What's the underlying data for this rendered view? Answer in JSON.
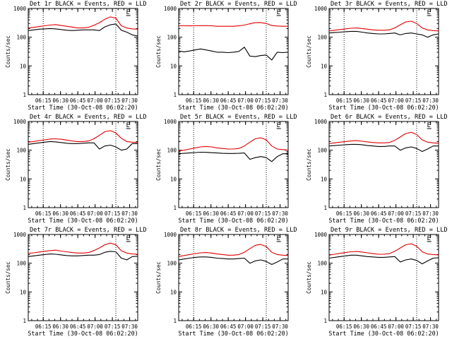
{
  "chart_data": {
    "type": "line",
    "y_scale": "log",
    "ylim": [
      1,
      1000
    ],
    "xlim_minutes": [
      0,
      95
    ],
    "x_ticks": [
      "06:15",
      "06:30",
      "06:45",
      "07:00",
      "07:15",
      "07:30"
    ],
    "x_tick_minutes": [
      13,
      28,
      43,
      58,
      73,
      88
    ],
    "y_ticks": [
      1,
      10,
      100,
      1000
    ],
    "y_tick_labels": [
      "1",
      "10",
      "100",
      "1000"
    ],
    "ylabel": "Counts/sec",
    "xlabel": "Start Time (30-Oct-08 06:02:20)",
    "marker_label": "E",
    "marker_minute": 85,
    "vline_minutes": [
      13,
      76
    ],
    "series_names": [
      "Events",
      "LLD"
    ],
    "colors": {
      "events": "#000000",
      "lld": "#e00000"
    },
    "panels": [
      {
        "title": "Det 1r BLACK = Events, RED = LLD",
        "events": [
          170,
          180,
          190,
          195,
          200,
          195,
          185,
          175,
          170,
          175,
          180,
          180,
          180,
          170,
          230,
          270,
          290,
          175,
          150,
          120,
          110
        ],
        "lld": [
          210,
          220,
          235,
          250,
          265,
          275,
          255,
          240,
          225,
          210,
          210,
          220,
          260,
          320,
          420,
          510,
          460,
          250,
          210,
          195,
          190
        ]
      },
      {
        "title": "Det 2r BLACK = Events, RED = LLD",
        "events": [
          33,
          31,
          33,
          36,
          39,
          36,
          33,
          30,
          30,
          29,
          30,
          32,
          45,
          22,
          21,
          23,
          24,
          16,
          30,
          29,
          30
        ],
        "lld": [
          250,
          250,
          248,
          250,
          252,
          252,
          250,
          240,
          240,
          240,
          240,
          248,
          265,
          295,
          320,
          325,
          300,
          255,
          245,
          240,
          240
        ],
        "dips": [
          [
            58,
            22
          ],
          [
            78,
            16
          ]
        ]
      },
      {
        "title": "Det 3r BLACK = Events, RED = LLD",
        "events": [
          140,
          145,
          150,
          155,
          160,
          160,
          150,
          140,
          135,
          130,
          130,
          135,
          140,
          120,
          135,
          140,
          130,
          120,
          100,
          120,
          130
        ],
        "lld": [
          165,
          175,
          185,
          195,
          205,
          210,
          200,
          190,
          180,
          175,
          175,
          180,
          210,
          270,
          340,
          360,
          300,
          210,
          180,
          170,
          165
        ]
      },
      {
        "title": "Det 4r BLACK = Events, RED = LLD",
        "events": [
          160,
          170,
          180,
          190,
          200,
          195,
          185,
          175,
          170,
          170,
          175,
          180,
          180,
          110,
          140,
          150,
          130,
          100,
          110,
          170,
          170
        ],
        "lld": [
          190,
          200,
          215,
          230,
          245,
          250,
          240,
          225,
          210,
          200,
          200,
          210,
          250,
          330,
          440,
          480,
          400,
          260,
          200,
          190,
          185
        ]
      },
      {
        "title": "Det 5r BLACK = Events, RED = LLD",
        "events": [
          75,
          78,
          80,
          83,
          85,
          84,
          82,
          80,
          78,
          77,
          77,
          78,
          80,
          48,
          55,
          60,
          55,
          40,
          60,
          75,
          75
        ],
        "lld": [
          95,
          100,
          110,
          120,
          130,
          135,
          130,
          120,
          115,
          110,
          110,
          115,
          140,
          190,
          250,
          270,
          230,
          140,
          110,
          105,
          100
        ]
      },
      {
        "title": "Det 6r BLACK = Events, RED = LLD",
        "events": [
          140,
          145,
          150,
          155,
          160,
          160,
          155,
          145,
          140,
          135,
          135,
          140,
          140,
          100,
          120,
          130,
          115,
          90,
          110,
          140,
          140
        ],
        "lld": [
          170,
          180,
          190,
          200,
          210,
          215,
          205,
          195,
          185,
          180,
          180,
          185,
          220,
          290,
          380,
          420,
          350,
          230,
          190,
          180,
          175
        ]
      },
      {
        "title": "Det 7r BLACK = Events, RED = LLD",
        "events": [
          170,
          180,
          190,
          200,
          210,
          205,
          195,
          185,
          180,
          180,
          185,
          190,
          190,
          200,
          240,
          260,
          250,
          150,
          130,
          170,
          175
        ],
        "lld": [
          220,
          230,
          245,
          260,
          275,
          285,
          265,
          250,
          235,
          225,
          225,
          235,
          275,
          340,
          440,
          500,
          440,
          270,
          225,
          210,
          205
        ]
      },
      {
        "title": "Det 8r BLACK = Events, RED = LLD",
        "events": [
          130,
          140,
          150,
          160,
          165,
          165,
          160,
          150,
          145,
          140,
          140,
          145,
          150,
          100,
          120,
          130,
          115,
          90,
          110,
          140,
          140
        ],
        "lld": [
          170,
          185,
          200,
          215,
          230,
          235,
          225,
          210,
          200,
          190,
          190,
          200,
          240,
          320,
          420,
          450,
          380,
          240,
          200,
          190,
          185
        ]
      },
      {
        "title": "Det 9r BLACK = Events, RED = LLD",
        "events": [
          150,
          160,
          170,
          180,
          190,
          190,
          180,
          170,
          165,
          160,
          160,
          165,
          170,
          110,
          130,
          140,
          125,
          95,
          120,
          150,
          155
        ],
        "lld": [
          190,
          205,
          220,
          235,
          250,
          255,
          245,
          230,
          215,
          205,
          205,
          215,
          260,
          340,
          440,
          470,
          390,
          250,
          210,
          200,
          195
        ]
      }
    ]
  }
}
